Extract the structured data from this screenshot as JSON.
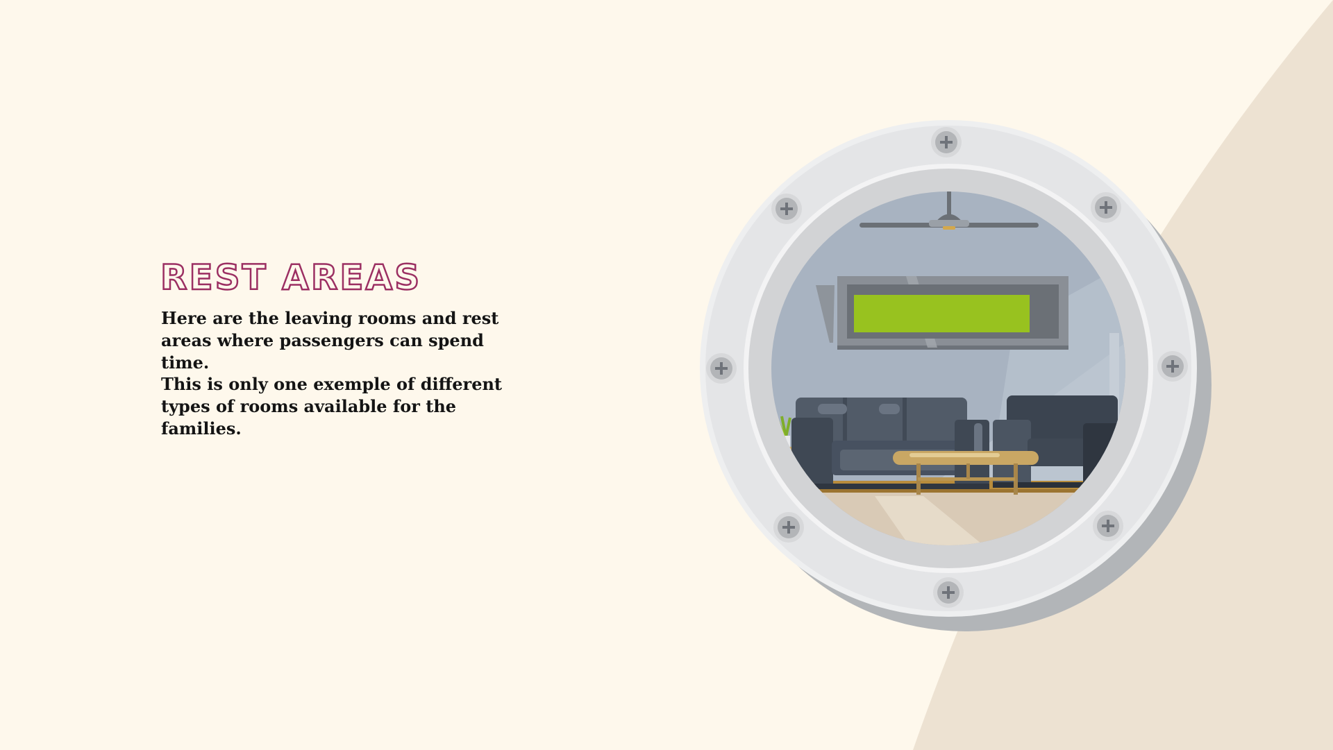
{
  "slide": {
    "title": "REST AREAS",
    "paragraphs": [
      "Here are the leaving rooms and rest areas where passengers can spend time.",
      "This is only one exemple of different types of rooms available for the families."
    ]
  },
  "colors": {
    "background": "#fef8ec",
    "accent_shape": "#ede2d2",
    "title_outline": "#9b2f62",
    "body_text": "#141414",
    "porthole_rim": "#e6e7e9",
    "porthole_shadow": "#b2b5b8",
    "screen_green": "#98c21f",
    "sofa": "#4a5563",
    "table_wood": "#c9a764"
  },
  "illustration": {
    "subject": "porthole-window-showing-lounge",
    "icons": [
      "screw-icon",
      "ceiling-fan-icon",
      "tv-screen-icon",
      "sofa-icon",
      "armchair-icon",
      "coffee-table-icon",
      "plant-icon"
    ]
  }
}
